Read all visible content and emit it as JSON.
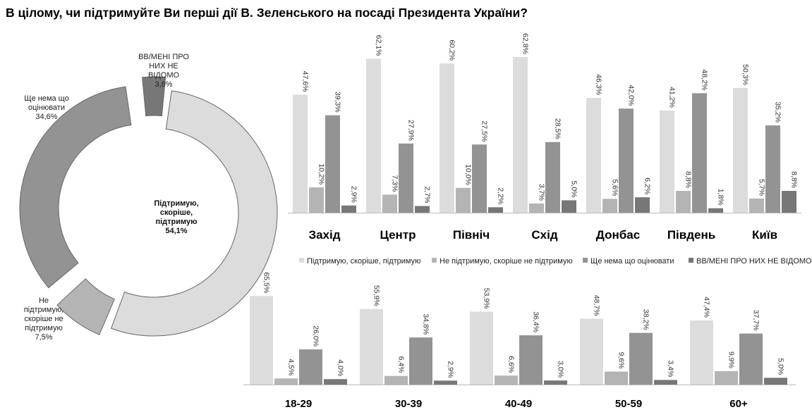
{
  "title": "В цілому, чи підтримуйте Ви перші дії В. Зеленського на посаді Президента України?",
  "colors": {
    "support": "#dcdcdc",
    "not_support": "#b4b4b4",
    "too_early": "#939393",
    "dk": "#777777"
  },
  "chart_data": [
    {
      "type": "pie",
      "variant": "donut",
      "slices": [
        {
          "key": "support",
          "label_lines": [
            "Підтримую,",
            "скоріше,",
            "підтримую"
          ],
          "value_label": "54,1%",
          "value": 54.1
        },
        {
          "key": "not_support",
          "label_lines": [
            "Не",
            "підтримую,",
            "скоріше не",
            "підтримую"
          ],
          "value_label": "7,5%",
          "value": 7.5
        },
        {
          "key": "too_early",
          "label_lines": [
            "Ще нема що",
            "оцінювати"
          ],
          "value_label": "34,6%",
          "value": 34.6
        },
        {
          "key": "dk",
          "label_lines": [
            "ВВ/МЕНІ ПРО",
            "НИХ НЕ",
            "ВІДОМО"
          ],
          "value_label": "3,8%",
          "value": 3.8
        }
      ]
    },
    {
      "type": "bar",
      "categories": [
        "Захід",
        "Центр",
        "Північ",
        "Схід",
        "Донбас",
        "Південь",
        "Київ"
      ],
      "series": [
        {
          "name": "Підтримую, скоріше, підтримую",
          "key": "support",
          "values": [
            47.6,
            62.1,
            60.2,
            62.8,
            46.3,
            41.2,
            50.3
          ],
          "labels": [
            "47,6%",
            "62,1%",
            "60,2%",
            "62,8%",
            "46,3%",
            "41,2%",
            "50,3%"
          ]
        },
        {
          "name": "Не підтримую, скоріше не підтримую",
          "key": "not_support",
          "values": [
            10.2,
            7.3,
            10.0,
            3.7,
            5.6,
            8.8,
            5.7
          ],
          "labels": [
            "10,2%",
            "7,3%",
            "10,0%",
            "3,7%",
            "5,6%",
            "8,8%",
            "5,7%"
          ]
        },
        {
          "name": "Ще нема що оцінювати",
          "key": "too_early",
          "values": [
            39.3,
            27.9,
            27.5,
            28.5,
            42.0,
            48.2,
            35.2
          ],
          "labels": [
            "39,3%",
            "27,9%",
            "27,5%",
            "28,5%",
            "42,0%",
            "48,2%",
            "35,2%"
          ]
        },
        {
          "name": "ВВ/МЕНІ ПРО НИХ НЕ ВІДОМО",
          "key": "dk",
          "values": [
            2.9,
            2.7,
            2.2,
            5.0,
            6.2,
            1.8,
            8.8
          ],
          "labels": [
            "2,9%",
            "2,7%",
            "2,2%",
            "5,0%",
            "6,2%",
            "1,8%",
            "8,8%"
          ]
        }
      ]
    },
    {
      "type": "bar",
      "categories": [
        "18-29",
        "30-39",
        "40-49",
        "50-59",
        "60+"
      ],
      "series": [
        {
          "name": "Підтримую, скоріше, підтримую",
          "key": "support",
          "values": [
            65.5,
            55.9,
            53.9,
            48.7,
            47.4
          ],
          "labels": [
            "65,5%",
            "55,9%",
            "53,9%",
            "48,7%",
            "47,4%"
          ]
        },
        {
          "name": "Не підтримую, скоріше не підтримую",
          "key": "not_support",
          "values": [
            4.5,
            6.4,
            6.6,
            9.6,
            9.9
          ],
          "labels": [
            "4,5%",
            "6,4%",
            "6,6%",
            "9,6%",
            "9,9%"
          ]
        },
        {
          "name": "Ще нема що оцінювати",
          "key": "too_early",
          "values": [
            26.0,
            34.8,
            36.4,
            38.2,
            37.7
          ],
          "labels": [
            "26,0%",
            "34,8%",
            "36,4%",
            "38,2%",
            "37,7%"
          ]
        },
        {
          "name": "ВВ/МЕНІ ПРО НИХ НЕ ВІДОМО",
          "key": "dk",
          "values": [
            4.0,
            2.9,
            3.0,
            3.4,
            5.0
          ],
          "labels": [
            "4,0%",
            "2,9%",
            "3,0%",
            "3,4%",
            "5,0%"
          ]
        }
      ]
    }
  ],
  "legend": [
    {
      "key": "support",
      "label": "Підтримую, скоріше, підтримую"
    },
    {
      "key": "not_support",
      "label": "Не підтримую, скоріше не підтримую"
    },
    {
      "key": "too_early",
      "label": "Ще нема що оцінювати"
    },
    {
      "key": "dk",
      "label": "ВВ/МЕНІ ПРО НИХ НЕ ВІДОМО"
    }
  ]
}
